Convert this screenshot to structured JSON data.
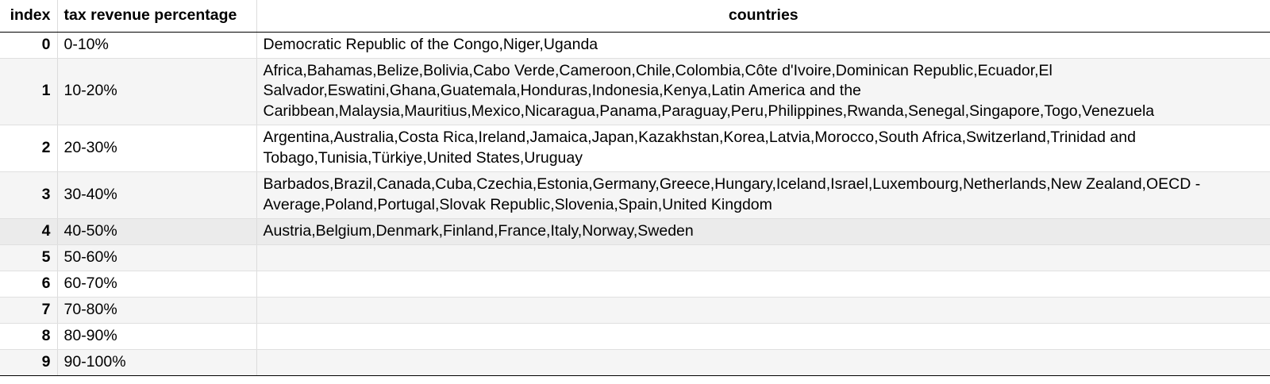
{
  "table": {
    "headers": {
      "index": "index",
      "tax_revenue_percentage": "tax revenue percentage",
      "countries": "countries"
    },
    "rows": [
      {
        "index": "0",
        "tax_revenue_percentage": "0-10%",
        "countries": "Democratic Republic of the Congo,Niger,Uganda"
      },
      {
        "index": "1",
        "tax_revenue_percentage": "10-20%",
        "countries": "Africa,Bahamas,Belize,Bolivia,Cabo Verde,Cameroon,Chile,Colombia,Côte d'Ivoire,Dominican Republic,Ecuador,El Salvador,Eswatini,Ghana,Guatemala,Honduras,Indonesia,Kenya,Latin America and the Caribbean,Malaysia,Mauritius,Mexico,Nicaragua,Panama,Paraguay,Peru,Philippines,Rwanda,Senegal,Singapore,Togo,Venezuela"
      },
      {
        "index": "2",
        "tax_revenue_percentage": "20-30%",
        "countries": "Argentina,Australia,Costa Rica,Ireland,Jamaica,Japan,Kazakhstan,Korea,Latvia,Morocco,South Africa,Switzerland,Trinidad and Tobago,Tunisia,Türkiye,United States,Uruguay"
      },
      {
        "index": "3",
        "tax_revenue_percentage": "30-40%",
        "countries": "Barbados,Brazil,Canada,Cuba,Czechia,Estonia,Germany,Greece,Hungary,Iceland,Israel,Luxembourg,Netherlands,New Zealand,OECD - Average,Poland,Portugal,Slovak Republic,Slovenia,Spain,United Kingdom"
      },
      {
        "index": "4",
        "tax_revenue_percentage": "40-50%",
        "countries": "Austria,Belgium,Denmark,Finland,France,Italy,Norway,Sweden"
      },
      {
        "index": "5",
        "tax_revenue_percentage": "50-60%",
        "countries": ""
      },
      {
        "index": "6",
        "tax_revenue_percentage": "60-70%",
        "countries": ""
      },
      {
        "index": "7",
        "tax_revenue_percentage": "70-80%",
        "countries": ""
      },
      {
        "index": "8",
        "tax_revenue_percentage": "80-90%",
        "countries": ""
      },
      {
        "index": "9",
        "tax_revenue_percentage": "90-100%",
        "countries": ""
      }
    ]
  }
}
